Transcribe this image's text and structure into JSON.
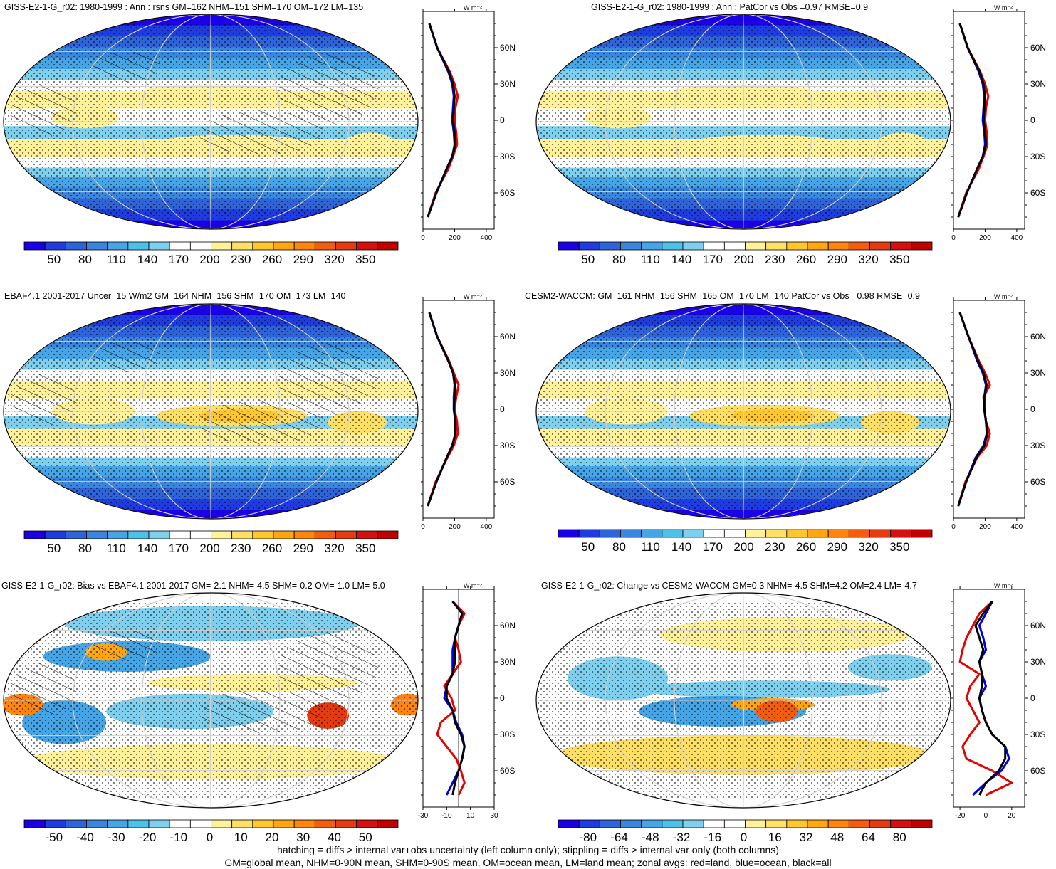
{
  "panels": [
    {
      "id": "p1",
      "title": "GISS-E2-1-G_r02: 1980-1999 : Ann : rsns GM=162 NHM=151 SHM=170 OM=172 LM=135",
      "kind": "abs",
      "hatch": true,
      "stipple": "pos"
    },
    {
      "id": "p2",
      "title": "GISS-E2-1-G_r02: 1980-1999 : Ann : PatCor vs Obs =0.97 RMSE=0.9",
      "kind": "abs",
      "hatch": false,
      "stipple": "pos"
    },
    {
      "id": "p3",
      "title": "EBAF4.1 2001-2017 Uncer=15 W/m2 GM=164 NHM=156 SHM=170 OM=173 LM=140",
      "kind": "abs",
      "hatch": true,
      "stipple": "pos"
    },
    {
      "id": "p4",
      "title": "CESM2-WACCM: GM=161 NHM=156 SHM=165 OM=170 LM=140 PatCor vs Obs =0.98 RMSE=0.9",
      "kind": "abs",
      "hatch": false,
      "stipple": "pos"
    },
    {
      "id": "p5",
      "title": "GISS-E2-1-G_r02: Bias vs EBAF4.1 2001-2017 GM=-2.1 NHM=-4.5 SHM=-0.2 OM=-1.0 LM=-5.0",
      "kind": "bias",
      "hatch": true,
      "stipple": "diff"
    },
    {
      "id": "p6",
      "title": "GISS-E2-1-G_r02: Change vs CESM2-WACCM GM=0.3 NHM=-4.5 SHM=4.2 OM=2.4 LM=-4.7",
      "kind": "change",
      "hatch": false,
      "stipple": "diff"
    }
  ],
  "profile_unit": "W m⁻²",
  "lat_labels": [
    "60N",
    "30N",
    "0",
    "30S",
    "60S"
  ],
  "colorbars": {
    "abs": {
      "labels": [
        "50",
        "80",
        "110",
        "140",
        "170",
        "200",
        "230",
        "260",
        "290",
        "320",
        "350"
      ]
    },
    "bias": {
      "labels": [
        "-50",
        "-40",
        "-30",
        "-20",
        "-10",
        "0",
        "10",
        "20",
        "30",
        "40",
        "50"
      ]
    },
    "change": {
      "labels": [
        "-80",
        "-64",
        "-48",
        "-32",
        "-16",
        "0",
        "16",
        "32",
        "48",
        "64",
        "80"
      ]
    }
  },
  "profile_axes": {
    "abs": {
      "xlim": [
        0,
        450
      ],
      "ticks": [
        "0",
        "200",
        "400"
      ],
      "tick_values": [
        0,
        200,
        400
      ]
    },
    "bias": {
      "xlim": [
        -30,
        30
      ],
      "ticks": [
        "-30",
        "-10",
        "10",
        "30"
      ],
      "tick_values": [
        -30,
        -10,
        10,
        30
      ]
    },
    "change": {
      "xlim": [
        -25,
        30
      ],
      "ticks": [
        "-20",
        "0",
        "20"
      ],
      "tick_values": [
        -20,
        0,
        20
      ]
    }
  },
  "colors": {
    "abs": [
      "#1a00e6",
      "#1f3ce0",
      "#2f63d9",
      "#3a86de",
      "#46a5e6",
      "#4ec1ea",
      "#7fd0ee",
      "#ffffff",
      "#ffffff",
      "#fff29a",
      "#ffe066",
      "#ffc62e",
      "#ffa610",
      "#ff8410",
      "#f45d10",
      "#e63a10",
      "#d41010",
      "#c00000"
    ],
    "diff": [
      "#1a00e6",
      "#1f3ce0",
      "#2f63d9",
      "#3a86de",
      "#46a5e6",
      "#4ec1ea",
      "#7fd0ee",
      "#ffffff",
      "#ffffff",
      "#fff29a",
      "#ffe066",
      "#ffc62e",
      "#ffa610",
      "#ff8410",
      "#f45d10",
      "#e63a10",
      "#d41010",
      "#c00000"
    ],
    "land_line": "#e60000",
    "ocean_line": "#0000e6",
    "all_line": "#000000"
  },
  "chart_data": [
    {
      "type": "heatmap",
      "panel": "p1",
      "title": "GISS-E2-1-G_r02: 1980-1999 : Ann : rsns GM=162 NHM=151 SHM=170 OM=172 LM=135",
      "colorbar": [
        50,
        80,
        110,
        140,
        170,
        200,
        230,
        260,
        290,
        320,
        350
      ],
      "zonal_profile": {
        "lat": [
          80,
          60,
          40,
          30,
          20,
          10,
          0,
          -10,
          -20,
          -30,
          -40,
          -60,
          -80
        ],
        "land": [
          40,
          90,
          170,
          200,
          220,
          205,
          200,
          210,
          215,
          190,
          160,
          80,
          30
        ],
        "ocean": [
          40,
          90,
          160,
          185,
          195,
          190,
          185,
          195,
          200,
          185,
          150,
          85,
          30
        ],
        "all": [
          40,
          90,
          165,
          190,
          200,
          195,
          190,
          200,
          205,
          185,
          150,
          85,
          30
        ]
      }
    },
    {
      "type": "heatmap",
      "panel": "p2",
      "title": "GISS-E2-1-G_r02: 1980-1999 : Ann : PatCor vs Obs =0.97 RMSE=0.9",
      "colorbar": [
        50,
        80,
        110,
        140,
        170,
        200,
        230,
        260,
        290,
        320,
        350
      ],
      "zonal_profile": {
        "lat": [
          80,
          60,
          40,
          30,
          20,
          10,
          0,
          -10,
          -20,
          -30,
          -40,
          -60,
          -80
        ],
        "land": [
          40,
          90,
          170,
          200,
          220,
          205,
          200,
          210,
          215,
          190,
          160,
          80,
          30
        ],
        "ocean": [
          40,
          90,
          160,
          185,
          195,
          190,
          185,
          195,
          200,
          185,
          150,
          85,
          30
        ],
        "all": [
          40,
          90,
          165,
          190,
          200,
          195,
          190,
          200,
          205,
          185,
          150,
          85,
          30
        ]
      }
    },
    {
      "type": "heatmap",
      "panel": "p3",
      "title": "EBAF4.1 2001-2017 Uncer=15 W/m2 GM=164 NHM=156 SHM=170 OM=173 LM=140",
      "colorbar": [
        50,
        80,
        110,
        140,
        170,
        200,
        230,
        260,
        290,
        320,
        350
      ],
      "zonal_profile": {
        "lat": [
          80,
          60,
          40,
          30,
          20,
          10,
          0,
          -10,
          -20,
          -30,
          -40,
          -60,
          -80
        ],
        "land": [
          40,
          90,
          165,
          195,
          225,
          210,
          200,
          215,
          220,
          195,
          155,
          80,
          30
        ],
        "ocean": [
          40,
          90,
          160,
          190,
          200,
          195,
          195,
          205,
          205,
          185,
          150,
          85,
          30
        ],
        "all": [
          40,
          90,
          160,
          190,
          205,
          200,
          195,
          205,
          205,
          185,
          150,
          85,
          30
        ]
      }
    },
    {
      "type": "heatmap",
      "panel": "p4",
      "title": "CESM2-WACCM: GM=161 NHM=156 SHM=165 OM=170 LM=140 PatCor vs Obs =0.98 RMSE=0.9",
      "colorbar": [
        50,
        80,
        110,
        140,
        170,
        200,
        230,
        260,
        290,
        320,
        350
      ],
      "zonal_profile": {
        "lat": [
          80,
          60,
          40,
          30,
          20,
          10,
          0,
          -10,
          -20,
          -30,
          -40,
          -60,
          -80
        ],
        "land": [
          40,
          95,
          160,
          200,
          230,
          190,
          195,
          205,
          230,
          210,
          150,
          75,
          30
        ],
        "ocean": [
          40,
          95,
          150,
          185,
          205,
          195,
          195,
          205,
          210,
          190,
          140,
          80,
          30
        ],
        "all": [
          40,
          95,
          155,
          190,
          210,
          195,
          195,
          205,
          215,
          195,
          145,
          80,
          30
        ]
      }
    },
    {
      "type": "heatmap",
      "panel": "p5",
      "title": "GISS-E2-1-G_r02: Bias vs EBAF4.1 2001-2017 GM=-2.1 NHM=-4.5 SHM=-0.2 OM=-1.0 LM=-5.0",
      "colorbar": [
        -50,
        -40,
        -30,
        -20,
        -10,
        0,
        10,
        20,
        30,
        40,
        50
      ],
      "zonal_profile": {
        "lat": [
          80,
          70,
          60,
          50,
          40,
          30,
          20,
          10,
          0,
          -10,
          -20,
          -30,
          -40,
          -50,
          -60,
          -70,
          -80
        ],
        "land": [
          -5,
          5,
          0,
          -3,
          0,
          2,
          -5,
          -12,
          -6,
          -3,
          -15,
          -18,
          -10,
          -2,
          2,
          5,
          0
        ],
        "ocean": [
          -5,
          3,
          0,
          -3,
          -5,
          -5,
          -5,
          -10,
          -12,
          -5,
          -2,
          3,
          5,
          3,
          0,
          -5,
          -10
        ],
        "all": [
          -5,
          3,
          0,
          -3,
          -3,
          -3,
          -5,
          -10,
          -10,
          -5,
          -3,
          2,
          5,
          3,
          0,
          -3,
          -5
        ]
      }
    },
    {
      "type": "heatmap",
      "panel": "p6",
      "title": "GISS-E2-1-G_r02: Change vs CESM2-WACCM GM=0.3 NHM=-4.5 SHM=4.2 OM=2.4 LM=-4.7",
      "colorbar": [
        -80,
        -64,
        -48,
        -32,
        -16,
        0,
        16,
        32,
        48,
        64,
        80
      ],
      "zonal_profile": {
        "lat": [
          80,
          70,
          60,
          50,
          40,
          30,
          20,
          10,
          0,
          -10,
          -20,
          -30,
          -40,
          -50,
          -60,
          -70,
          -80
        ],
        "land": [
          5,
          -5,
          -10,
          -15,
          -18,
          -20,
          -5,
          -12,
          -15,
          -10,
          -5,
          -12,
          -18,
          -15,
          5,
          20,
          0
        ],
        "ocean": [
          5,
          0,
          -5,
          -2,
          0,
          -5,
          -3,
          0,
          -5,
          -3,
          0,
          5,
          15,
          18,
          12,
          0,
          -10
        ],
        "all": [
          5,
          -2,
          -8,
          -5,
          -2,
          -5,
          -3,
          -3,
          -5,
          -3,
          0,
          5,
          15,
          15,
          10,
          0,
          -5
        ]
      }
    }
  ],
  "footer": {
    "line1": "hatching = diffs > internal var+obs uncertainty (left column only); stippling = diffs > internal var only (both columns)",
    "line2": "GM=global mean, NHM=0-90N mean, SHM=0-90S mean, OM=ocean mean, LM=land mean; zonal avgs: red=land, blue=ocean, black=all"
  }
}
